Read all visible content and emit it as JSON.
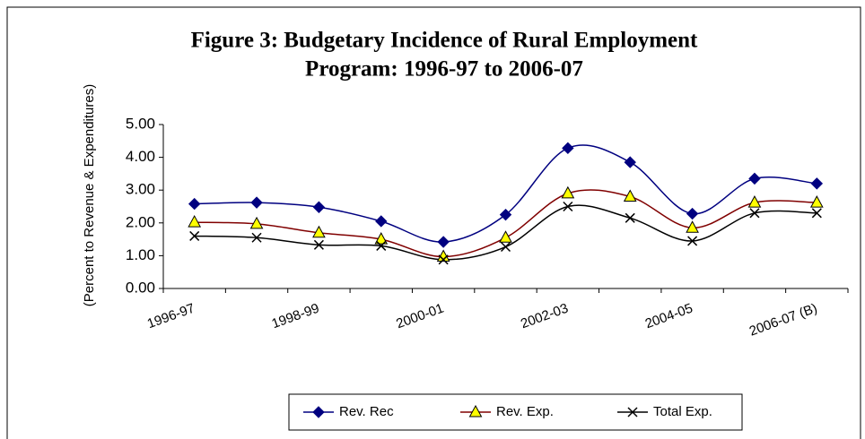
{
  "chart_data": {
    "type": "line",
    "title": [
      "Figure 3: Budgetary Incidence of Rural Employment",
      "Program: 1996-97 to 2006-07"
    ],
    "y_label": "(Percent to Revenue & Expenditures)",
    "categories": [
      "1996-97",
      null,
      "1998-99",
      null,
      "2000-01",
      null,
      "2002-03",
      null,
      "2004-05",
      null,
      "2006-07 (B)"
    ],
    "series": [
      {
        "name": "Rev. Rec",
        "color": "#000080",
        "marker": "diamond",
        "marker_color": "#000080",
        "values": [
          2.58,
          2.62,
          2.48,
          2.05,
          1.42,
          2.25,
          4.28,
          3.85,
          2.28,
          3.35,
          3.2
        ]
      },
      {
        "name": "Rev. Exp.",
        "color": "#800000",
        "marker": "triangle",
        "marker_color": "#ffff00",
        "values": [
          2.02,
          1.97,
          1.7,
          1.5,
          0.97,
          1.55,
          2.9,
          2.8,
          1.85,
          2.62,
          2.62
        ]
      },
      {
        "name": "Total Exp.",
        "color": "#000000",
        "marker": "x",
        "marker_color": "#000000",
        "values": [
          1.6,
          1.55,
          1.33,
          1.3,
          0.88,
          1.27,
          2.5,
          2.15,
          1.45,
          2.3,
          2.3
        ]
      }
    ],
    "ylim": [
      0,
      5
    ],
    "yticks": [
      {
        "value": 0,
        "label": "0.00"
      },
      {
        "value": 1,
        "label": "1.00"
      },
      {
        "value": 2,
        "label": "2.00"
      },
      {
        "value": 3,
        "label": "3.00"
      },
      {
        "value": 4,
        "label": "4.00"
      },
      {
        "value": 5,
        "label": "5.00"
      }
    ],
    "smooth": true,
    "legend": "bottom"
  }
}
